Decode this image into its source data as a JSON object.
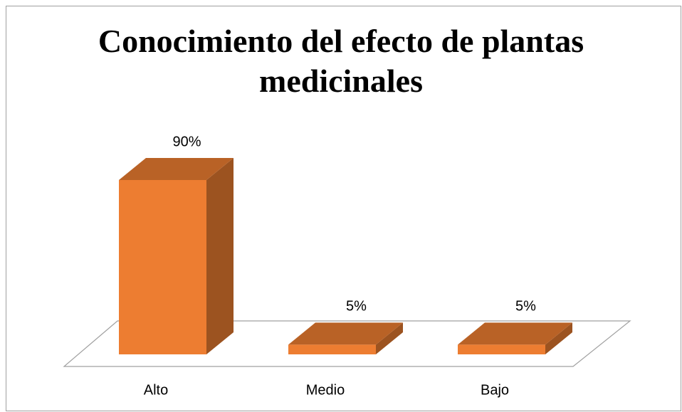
{
  "chart_data": {
    "type": "bar3d",
    "title": "Conocimiento del efecto de plantas medicinales",
    "categories": [
      "Alto",
      "Medio",
      "Bajo"
    ],
    "values": [
      90,
      5,
      5
    ],
    "value_labels": [
      "90%",
      "5%",
      "5%"
    ],
    "color": "#ed7d31"
  }
}
